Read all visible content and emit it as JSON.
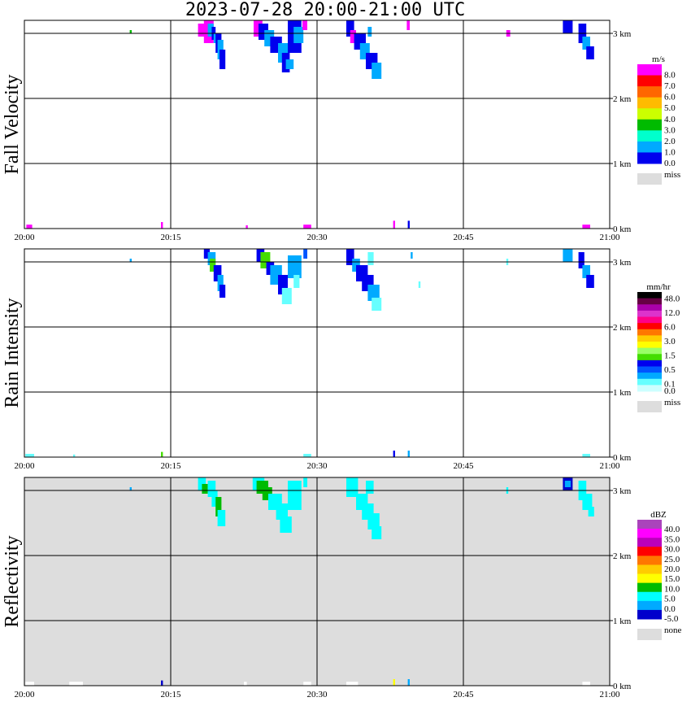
{
  "title": "2023-07-28   20:00-21:00 UTC",
  "x_ticks": [
    "20:00",
    "20:15",
    "20:30",
    "20:45",
    "21:00"
  ],
  "y_ticks": [
    "0 km",
    "1 km",
    "2 km",
    "3 km"
  ],
  "chart_data": [
    {
      "type": "heatmap",
      "ylabel": "Fall Velocity",
      "background": "#ffffff",
      "colorbar": {
        "unit": "m/s",
        "colors": [
          "#ff00ff",
          "#ff0000",
          "#ff6600",
          "#ffbb00",
          "#ccff00",
          "#00bb00",
          "#00ffcc",
          "#00aaff",
          "#0000ee"
        ],
        "labels": [
          "8.0",
          "7.0",
          "6.0",
          "5.0",
          "4.0",
          "3.0",
          "2.0",
          "1.0",
          "0.0"
        ],
        "miss_label": "miss"
      },
      "xlim": [
        0,
        60
      ],
      "ylim": [
        0,
        3.2
      ],
      "cells": [
        [
          10.8,
          3.0,
          11.0,
          3.05,
          "#00bb00"
        ],
        [
          17.8,
          2.95,
          18.6,
          3.15,
          "#ff00ff"
        ],
        [
          18.4,
          2.85,
          19.4,
          3.2,
          "#ff00ff"
        ],
        [
          18.8,
          2.95,
          19.4,
          3.15,
          "#00aaff"
        ],
        [
          19.2,
          2.9,
          19.6,
          3.1,
          "#0000ee"
        ],
        [
          19.4,
          2.85,
          19.8,
          3.0,
          "#00aaff"
        ],
        [
          19.6,
          2.7,
          20.2,
          3.0,
          "#0000ee"
        ],
        [
          19.8,
          2.6,
          20.4,
          2.9,
          "#00aaff"
        ],
        [
          20.0,
          2.45,
          20.6,
          2.75,
          "#0000ee"
        ],
        [
          23.5,
          2.95,
          24.4,
          3.2,
          "#ff00ff"
        ],
        [
          24.0,
          2.9,
          25.0,
          3.15,
          "#0000ee"
        ],
        [
          24.6,
          2.8,
          25.6,
          3.05,
          "#00aaff"
        ],
        [
          25.2,
          2.7,
          26.4,
          2.95,
          "#0000ee"
        ],
        [
          26.0,
          2.55,
          27.0,
          2.85,
          "#00aaff"
        ],
        [
          26.4,
          2.4,
          27.2,
          2.7,
          "#0000ee"
        ],
        [
          26.8,
          2.45,
          27.6,
          2.6,
          "#00aaff"
        ],
        [
          27.0,
          2.7,
          28.4,
          3.2,
          "#0000ee"
        ],
        [
          27.6,
          2.85,
          28.6,
          3.1,
          "#00aaff"
        ],
        [
          28.5,
          3.05,
          29.0,
          3.2,
          "#ff00ff"
        ],
        [
          33.0,
          2.95,
          33.8,
          3.2,
          "#0000ee"
        ],
        [
          33.4,
          2.85,
          34.0,
          3.05,
          "#ff00ff"
        ],
        [
          33.8,
          2.75,
          35.0,
          3.0,
          "#0000ee"
        ],
        [
          34.4,
          2.6,
          35.4,
          2.85,
          "#00aaff"
        ],
        [
          35.0,
          2.45,
          36.2,
          2.7,
          "#0000ee"
        ],
        [
          35.6,
          2.3,
          36.6,
          2.55,
          "#00aaff"
        ],
        [
          35.2,
          2.95,
          35.6,
          3.1,
          "#00aaff"
        ],
        [
          39.2,
          3.05,
          39.5,
          3.2,
          "#ff00ff"
        ],
        [
          49.4,
          2.95,
          49.8,
          3.05,
          "#ff00ff"
        ],
        [
          55.2,
          3.0,
          56.2,
          3.2,
          "#0000ee"
        ],
        [
          56.8,
          2.85,
          57.6,
          3.15,
          "#0000ee"
        ],
        [
          57.2,
          2.75,
          58.0,
          2.95,
          "#00aaff"
        ],
        [
          57.6,
          2.6,
          58.4,
          2.8,
          "#0000ee"
        ],
        [
          0.2,
          0.0,
          0.8,
          0.06,
          "#ff00ff"
        ],
        [
          14.0,
          0.0,
          14.2,
          0.1,
          "#ff00ff"
        ],
        [
          22.7,
          0.0,
          22.9,
          0.05,
          "#ff00ff"
        ],
        [
          28.6,
          0.0,
          29.4,
          0.06,
          "#ff00ff"
        ],
        [
          37.8,
          0.0,
          38.0,
          0.12,
          "#ff00ff"
        ],
        [
          39.3,
          0.0,
          39.5,
          0.12,
          "#0000ee"
        ],
        [
          57.2,
          0.0,
          58.0,
          0.06,
          "#ff00ff"
        ]
      ]
    },
    {
      "type": "heatmap",
      "ylabel": "Rain Intensity",
      "background": "#ffffff",
      "colorbar": {
        "unit": "mm/hr",
        "colors": [
          "#000000",
          "#660044",
          "#aa00aa",
          "#dd33cc",
          "#ff0088",
          "#ff0000",
          "#ff7700",
          "#ffcc00",
          "#ffff00",
          "#99ff66",
          "#44dd00",
          "#0000ee",
          "#0055ff",
          "#00aaff",
          "#66ffff",
          "#ccffff"
        ],
        "labels": [
          "48.0",
          "",
          "12.0",
          "",
          "6.0",
          "",
          "3.0",
          "",
          "1.5",
          "",
          "0.5",
          "",
          "0.1",
          "0.0"
        ],
        "miss_label": "miss"
      },
      "xlim": [
        0,
        60
      ],
      "ylim": [
        0,
        3.2
      ],
      "cells": [
        [
          10.8,
          3.0,
          11.0,
          3.05,
          "#00aaff"
        ],
        [
          18.4,
          3.05,
          19.0,
          3.2,
          "#0000ee"
        ],
        [
          18.8,
          2.95,
          19.6,
          3.15,
          "#00aaff"
        ],
        [
          19.0,
          2.85,
          19.6,
          3.05,
          "#44dd00"
        ],
        [
          19.4,
          2.7,
          20.2,
          2.95,
          "#0000ee"
        ],
        [
          19.8,
          2.55,
          20.4,
          2.8,
          "#00aaff"
        ],
        [
          20.0,
          2.45,
          20.6,
          2.65,
          "#0000ee"
        ],
        [
          23.8,
          3.0,
          24.6,
          3.2,
          "#0000ee"
        ],
        [
          24.2,
          2.9,
          25.2,
          3.15,
          "#44dd00"
        ],
        [
          24.8,
          2.8,
          25.6,
          3.0,
          "#0000ee"
        ],
        [
          25.2,
          2.65,
          26.4,
          2.95,
          "#00aaff"
        ],
        [
          26.0,
          2.5,
          27.0,
          2.8,
          "#0000ee"
        ],
        [
          26.4,
          2.35,
          27.4,
          2.6,
          "#66ffff"
        ],
        [
          27.0,
          2.75,
          28.4,
          3.1,
          "#00aaff"
        ],
        [
          27.6,
          2.6,
          28.2,
          2.8,
          "#66ffff"
        ],
        [
          28.6,
          3.05,
          29.0,
          3.2,
          "#0055ff"
        ],
        [
          33.0,
          2.95,
          33.8,
          3.2,
          "#0000ee"
        ],
        [
          33.6,
          2.85,
          34.4,
          3.05,
          "#00aaff"
        ],
        [
          34.0,
          2.7,
          35.2,
          2.95,
          "#0000ee"
        ],
        [
          34.6,
          2.55,
          35.8,
          2.8,
          "#0000ee"
        ],
        [
          35.2,
          2.4,
          36.4,
          2.65,
          "#00aaff"
        ],
        [
          35.6,
          2.25,
          36.6,
          2.45,
          "#66ffff"
        ],
        [
          35.2,
          2.95,
          35.8,
          3.15,
          "#66ffff"
        ],
        [
          39.6,
          3.05,
          39.8,
          3.15,
          "#00aaff"
        ],
        [
          40.4,
          2.6,
          40.6,
          2.7,
          "#66ffff"
        ],
        [
          49.4,
          2.95,
          49.6,
          3.05,
          "#66ffff"
        ],
        [
          55.2,
          3.0,
          56.2,
          3.2,
          "#00aaff"
        ],
        [
          56.8,
          2.9,
          57.4,
          3.15,
          "#0000ee"
        ],
        [
          57.2,
          2.75,
          58.0,
          2.95,
          "#00aaff"
        ],
        [
          57.6,
          2.6,
          58.4,
          2.8,
          "#0000ee"
        ],
        [
          0.1,
          0.0,
          1.0,
          0.05,
          "#66ffff"
        ],
        [
          5.0,
          0.0,
          5.2,
          0.04,
          "#66ffff"
        ],
        [
          14.0,
          0.0,
          14.2,
          0.08,
          "#44dd00"
        ],
        [
          28.6,
          0.0,
          29.4,
          0.05,
          "#66ffff"
        ],
        [
          37.8,
          0.0,
          38.0,
          0.1,
          "#0000ee"
        ],
        [
          39.3,
          0.0,
          39.5,
          0.1,
          "#00aaff"
        ],
        [
          57.2,
          0.0,
          58.0,
          0.05,
          "#66ffff"
        ]
      ]
    },
    {
      "type": "heatmap",
      "ylabel": "Reflectivity",
      "background": "#dddddd",
      "colorbar": {
        "unit": "dBZ",
        "colors": [
          "#aa44bb",
          "#ff00ff",
          "#bb00bb",
          "#ff0000",
          "#ff7700",
          "#ffcc00",
          "#ffff00",
          "#00bb00",
          "#00ffff",
          "#00aaff",
          "#0000cc"
        ],
        "labels": [
          "40.0",
          "35.0",
          "30.0",
          "25.0",
          "20.0",
          "15.0",
          "10.0",
          "5.0",
          "0.0",
          "-5.0"
        ],
        "miss_label": "none"
      },
      "xlim": [
        0,
        60
      ],
      "ylim": [
        0,
        3.2
      ],
      "cells": [
        [
          10.8,
          3.0,
          11.0,
          3.05,
          "#00aaff"
        ],
        [
          17.8,
          3.0,
          18.6,
          3.2,
          "#00ffff"
        ],
        [
          18.2,
          2.95,
          18.8,
          3.1,
          "#00bb00"
        ],
        [
          18.8,
          2.9,
          19.6,
          3.15,
          "#00ffff"
        ],
        [
          19.2,
          2.75,
          19.8,
          3.0,
          "#00ffff"
        ],
        [
          19.6,
          2.6,
          20.2,
          2.9,
          "#00bb00"
        ],
        [
          19.8,
          2.45,
          20.6,
          2.7,
          "#00ffff"
        ],
        [
          23.4,
          3.0,
          24.6,
          3.2,
          "#00ffff"
        ],
        [
          23.8,
          2.95,
          25.0,
          3.15,
          "#00bb00"
        ],
        [
          24.4,
          2.85,
          25.4,
          3.05,
          "#00bb00"
        ],
        [
          25.0,
          2.7,
          26.4,
          2.95,
          "#00ffff"
        ],
        [
          25.8,
          2.55,
          27.0,
          2.8,
          "#00ffff"
        ],
        [
          26.2,
          2.35,
          27.4,
          2.6,
          "#00ffff"
        ],
        [
          27.0,
          2.7,
          28.4,
          3.15,
          "#00ffff"
        ],
        [
          28.6,
          3.05,
          29.0,
          3.2,
          "#00ffff"
        ],
        [
          33.0,
          2.9,
          34.2,
          3.2,
          "#00ffff"
        ],
        [
          34.0,
          2.7,
          35.2,
          2.95,
          "#00ffff"
        ],
        [
          34.6,
          2.55,
          35.8,
          2.8,
          "#00ffff"
        ],
        [
          35.2,
          2.4,
          36.4,
          2.65,
          "#00ffff"
        ],
        [
          35.6,
          2.25,
          36.6,
          2.45,
          "#00ffff"
        ],
        [
          35.0,
          2.95,
          35.8,
          3.15,
          "#00ffff"
        ],
        [
          49.4,
          2.95,
          49.6,
          3.05,
          "#00ffff"
        ],
        [
          55.2,
          3.0,
          56.2,
          3.2,
          "#0000cc"
        ],
        [
          55.4,
          3.05,
          56.0,
          3.15,
          "#00aaff"
        ],
        [
          56.8,
          2.85,
          57.6,
          3.15,
          "#00ffff"
        ],
        [
          57.2,
          2.7,
          58.2,
          2.95,
          "#00ffff"
        ],
        [
          57.8,
          2.6,
          58.4,
          2.75,
          "#00ffff"
        ],
        [
          0.1,
          0.0,
          1.0,
          0.06,
          "#ffffff"
        ],
        [
          4.6,
          0.0,
          6.0,
          0.06,
          "#ffffff"
        ],
        [
          14.0,
          0.0,
          14.2,
          0.08,
          "#0000cc"
        ],
        [
          22.5,
          0.0,
          22.8,
          0.06,
          "#ffffff"
        ],
        [
          28.6,
          0.0,
          29.4,
          0.06,
          "#ffffff"
        ],
        [
          33.0,
          0.0,
          34.2,
          0.06,
          "#ffffff"
        ],
        [
          37.8,
          0.0,
          38.0,
          0.1,
          "#ffff00"
        ],
        [
          39.3,
          0.0,
          39.5,
          0.1,
          "#00aaff"
        ],
        [
          57.2,
          0.0,
          58.0,
          0.06,
          "#ffffff"
        ]
      ]
    }
  ]
}
